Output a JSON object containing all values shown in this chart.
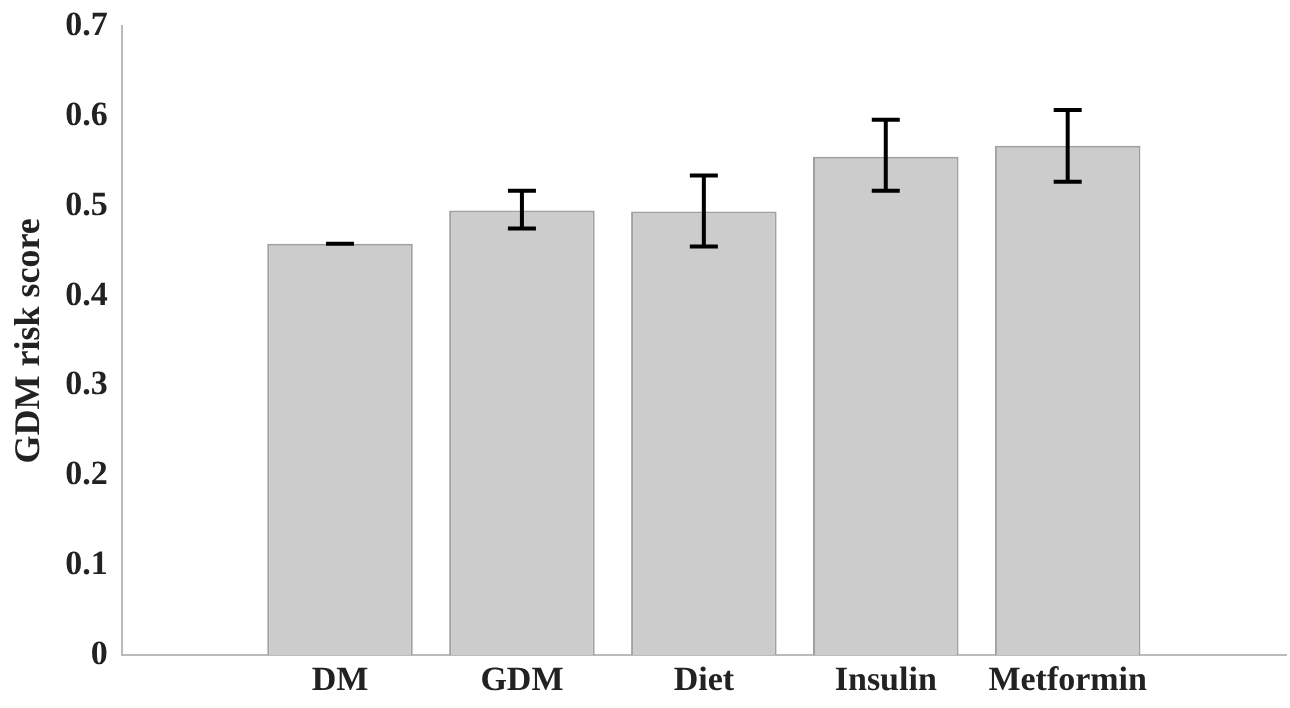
{
  "chart_data": {
    "type": "bar",
    "ylabel": "GDM risk score",
    "categories": [
      "DM",
      "GDM",
      "Diet",
      "Insulin",
      "Metformin"
    ],
    "values": [
      0.458,
      0.495,
      0.494,
      0.555,
      0.567
    ],
    "errors": [
      0,
      [
        0.475,
        0.517
      ],
      [
        0.455,
        0.534
      ],
      [
        0.517,
        0.596
      ],
      [
        0.527,
        0.607
      ]
    ],
    "color": "#cccccc",
    "ylim": [
      0,
      0.7
    ],
    "yticks": [
      0,
      0.1,
      0.2,
      0.3,
      0.4,
      0.5,
      0.6,
      0.7
    ],
    "grid": false,
    "legend": false
  }
}
